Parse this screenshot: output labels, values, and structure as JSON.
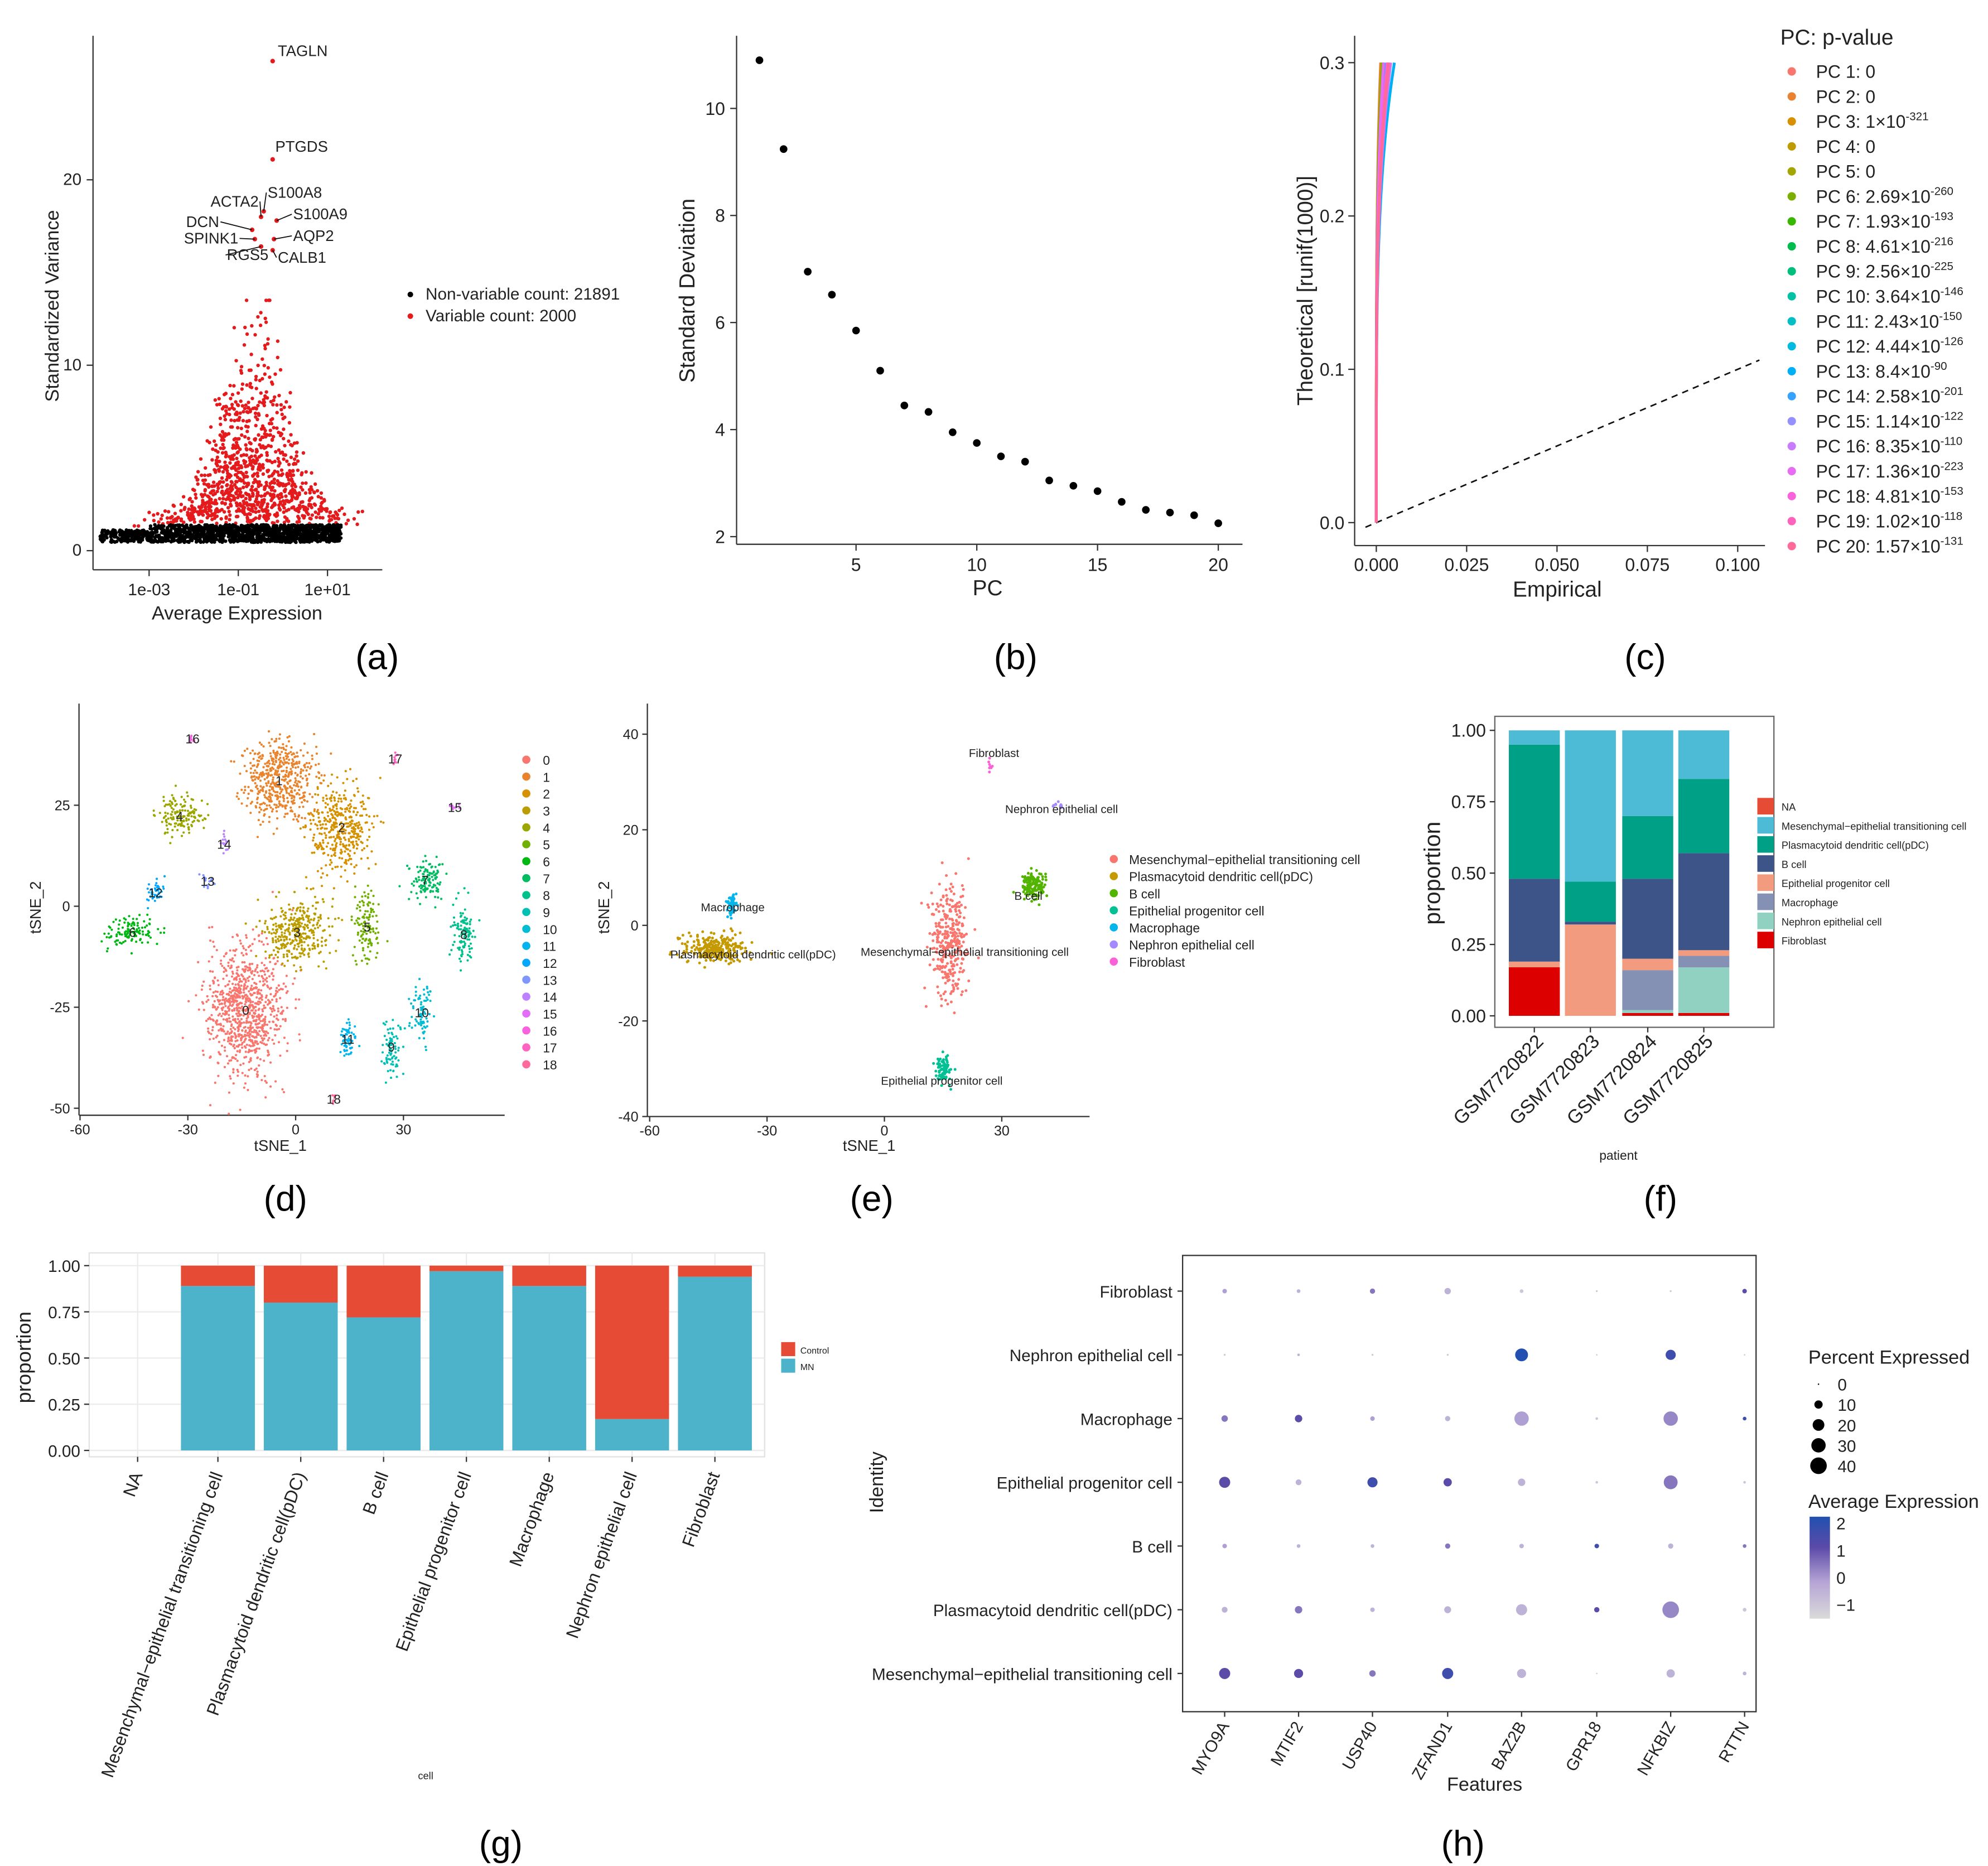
{
  "captions": [
    "(a)",
    "(b)",
    "(c)",
    "(d)",
    "(e)",
    "(f)",
    "(g)",
    "(h)"
  ],
  "chart_data": [
    {
      "panel": "a",
      "type": "scatter",
      "xlabel": "Average Expression",
      "ylabel": "Standardized Variance",
      "xscale": "log10",
      "xticks": [
        {
          "value": -3,
          "label": "1e-03"
        },
        {
          "value": -1,
          "label": "1e-01"
        },
        {
          "value": 1,
          "label": "1e+01"
        }
      ],
      "yticks": [
        {
          "value": 0,
          "label": "0"
        },
        {
          "value": 10,
          "label": "10"
        },
        {
          "value": 20,
          "label": "20"
        }
      ],
      "legend": [
        {
          "label": "Non-variable count: 21891",
          "color": "#000000"
        },
        {
          "label": "Variable count: 2000",
          "color": "#E41A1C"
        }
      ],
      "render_sample": {
        "nonvariable": 1500,
        "variable": 1000
      },
      "labeled_genes": [
        {
          "name": "TAGLN",
          "log10_x": -0.23,
          "y": 26.4
        },
        {
          "name": "PTGDS",
          "log10_x": -0.23,
          "y": 21.1
        },
        {
          "name": "ACTA2",
          "log10_x": -0.49,
          "y": 18.0
        },
        {
          "name": "S100A8",
          "log10_x": -0.43,
          "y": 18.3
        },
        {
          "name": "S100A9",
          "log10_x": -0.14,
          "y": 17.8
        },
        {
          "name": "DCN",
          "log10_x": -0.69,
          "y": 17.3
        },
        {
          "name": "SPINK1",
          "log10_x": -0.63,
          "y": 16.8
        },
        {
          "name": "AQP2",
          "log10_x": -0.2,
          "y": 16.8
        },
        {
          "name": "RGS5",
          "log10_x": -0.49,
          "y": 16.4
        },
        {
          "name": "CALB1",
          "log10_x": -0.23,
          "y": 16.2
        }
      ]
    },
    {
      "panel": "b",
      "type": "scatter",
      "xlabel": "PC",
      "ylabel": "Standard Deviation",
      "xticks": [
        5,
        10,
        15,
        20
      ],
      "yticks": [
        2,
        4,
        6,
        8,
        10
      ],
      "x": [
        1,
        2,
        3,
        4,
        5,
        6,
        7,
        8,
        9,
        10,
        11,
        12,
        13,
        14,
        15,
        16,
        17,
        18,
        19,
        20
      ],
      "y": [
        10.9,
        9.24,
        6.95,
        6.52,
        5.85,
        5.1,
        4.45,
        4.33,
        3.95,
        3.75,
        3.5,
        3.4,
        3.05,
        2.95,
        2.85,
        2.65,
        2.5,
        2.45,
        2.4,
        2.25
      ]
    },
    {
      "panel": "c",
      "type": "line",
      "xlabel": "Empirical",
      "ylabel": "Theoretical [runif(1000)]",
      "xticks": [
        {
          "value": 0,
          "label": "0.000"
        },
        {
          "value": 0.025,
          "label": "0.025"
        },
        {
          "value": 0.05,
          "label": "0.050"
        },
        {
          "value": 0.075,
          "label": "0.075"
        },
        {
          "value": 0.1,
          "label": "0.100"
        }
      ],
      "yticks": [
        {
          "value": 0,
          "label": "0.0"
        },
        {
          "value": 0.1,
          "label": "0.1"
        },
        {
          "value": 0.2,
          "label": "0.2"
        },
        {
          "value": 0.3,
          "label": "0.3"
        }
      ],
      "legend_title": "PC: p-value",
      "series": [
        {
          "label": "PC 1: 0",
          "exp": "",
          "max_empirical": 0.0012
        },
        {
          "label": "PC 2: 0",
          "exp": "",
          "max_empirical": 0.0013
        },
        {
          "label": "PC 3: 1×10",
          "exp": "-321",
          "max_empirical": 0.0014
        },
        {
          "label": "PC 4: 0",
          "exp": "",
          "max_empirical": 0.0015
        },
        {
          "label": "PC 5: 0",
          "exp": "",
          "max_empirical": 0.0016
        },
        {
          "label": "PC 6: 2.69×10",
          "exp": "-260",
          "max_empirical": 0.0018
        },
        {
          "label": "PC 7: 1.93×10",
          "exp": "-193",
          "max_empirical": 0.0022
        },
        {
          "label": "PC 8: 4.61×10",
          "exp": "-216",
          "max_empirical": 0.002
        },
        {
          "label": "PC 9: 2.56×10",
          "exp": "-225",
          "max_empirical": 0.002
        },
        {
          "label": "PC 10: 3.64×10",
          "exp": "-146",
          "max_empirical": 0.0032
        },
        {
          "label": "PC 11: 2.43×10",
          "exp": "-150",
          "max_empirical": 0.003
        },
        {
          "label": "PC 12: 4.44×10",
          "exp": "-126",
          "max_empirical": 0.0036
        },
        {
          "label": "PC 13: 8.4×10",
          "exp": "-90",
          "max_empirical": 0.005
        },
        {
          "label": "PC 14: 2.58×10",
          "exp": "-201",
          "max_empirical": 0.0022
        },
        {
          "label": "PC 15: 1.14×10",
          "exp": "-122",
          "max_empirical": 0.0036
        },
        {
          "label": "PC 16: 8.35×10",
          "exp": "-110",
          "max_empirical": 0.004
        },
        {
          "label": "PC 17: 1.36×10",
          "exp": "-223",
          "max_empirical": 0.002
        },
        {
          "label": "PC 18: 4.81×10",
          "exp": "-153",
          "max_empirical": 0.003
        },
        {
          "label": "PC 19: 1.02×10",
          "exp": "-118",
          "max_empirical": 0.0036
        },
        {
          "label": "PC 20: 1.57×10",
          "exp": "-131",
          "max_empirical": 0.0034
        }
      ]
    },
    {
      "panel": "d",
      "type": "scatter",
      "xlabel": "tSNE_1",
      "ylabel": "tSNE_2",
      "xticks": [
        -60,
        -30,
        0,
        30
      ],
      "yticks": [
        -50,
        -25,
        0,
        25
      ],
      "clusters": [
        {
          "label": "0",
          "x": -13.9,
          "y": -25.6,
          "sx": 9,
          "sy": 13,
          "n": 900
        },
        {
          "label": "1",
          "x": -4.6,
          "y": 31.2,
          "sx": 8,
          "sy": 8,
          "n": 500
        },
        {
          "label": "2",
          "x": 12.8,
          "y": 19.6,
          "sx": 7,
          "sy": 9,
          "n": 400
        },
        {
          "label": "3",
          "x": 0.4,
          "y": -6.3,
          "sx": 7,
          "sy": 7,
          "n": 350
        },
        {
          "label": "4",
          "x": -32.3,
          "y": 22.4,
          "sx": 5,
          "sy": 4,
          "n": 150
        },
        {
          "label": "5",
          "x": 19.9,
          "y": -5.0,
          "sx": 3,
          "sy": 8,
          "n": 120
        },
        {
          "label": "6",
          "x": -45.4,
          "y": -6.3,
          "sx": 6,
          "sy": 3,
          "n": 120
        },
        {
          "label": "7",
          "x": 36.0,
          "y": 6.6,
          "sx": 4,
          "sy": 4,
          "n": 120
        },
        {
          "label": "8",
          "x": 46.8,
          "y": -6.9,
          "sx": 2.5,
          "sy": 6,
          "n": 110
        },
        {
          "label": "9",
          "x": 26.6,
          "y": -34.7,
          "sx": 2.5,
          "sy": 6,
          "n": 80
        },
        {
          "label": "10",
          "x": 35.1,
          "y": -26.2,
          "sx": 2.5,
          "sy": 6,
          "n": 80
        },
        {
          "label": "11",
          "x": 14.5,
          "y": -32.8,
          "sx": 1.8,
          "sy": 3.5,
          "n": 60
        },
        {
          "label": "12",
          "x": -39.0,
          "y": 3.5,
          "sx": 1.8,
          "sy": 2.5,
          "n": 40
        },
        {
          "label": "13",
          "x": -24.5,
          "y": 6.3,
          "sx": 1.5,
          "sy": 1.5,
          "n": 15
        },
        {
          "label": "14",
          "x": -19.9,
          "y": 15.5,
          "sx": 1,
          "sy": 2.5,
          "n": 15
        },
        {
          "label": "15",
          "x": 44.3,
          "y": 24.6,
          "sx": 1.5,
          "sy": 0.6,
          "n": 10
        },
        {
          "label": "16",
          "x": -28.7,
          "y": 41.6,
          "sx": 0.8,
          "sy": 0.8,
          "n": 10
        },
        {
          "label": "17",
          "x": 27.7,
          "y": 36.6,
          "sx": 0.8,
          "sy": 1.2,
          "n": 10
        },
        {
          "label": "18",
          "x": 10.6,
          "y": -47.6,
          "sx": 0.5,
          "sy": 1.2,
          "n": 8
        }
      ]
    },
    {
      "panel": "e",
      "type": "scatter",
      "xlabel": "tSNE_1",
      "ylabel": "tSNE_2",
      "xticks": [
        -60,
        -30,
        0,
        30
      ],
      "yticks": [
        -40,
        -20,
        0,
        20,
        40
      ],
      "clusters": [
        {
          "label": "Mesenchymal−epithelial transitioning cell",
          "color": "#F8766D",
          "x": 16.6,
          "y": -3.7,
          "sx": 4,
          "sy": 10,
          "n": 320
        },
        {
          "label": "Plasmacytoid dendritic cell(pDC)",
          "color": "#C49A00",
          "x": -43.6,
          "y": -5.0,
          "sx": 7,
          "sy": 2.5,
          "n": 260
        },
        {
          "label": "B cell",
          "color": "#53B400",
          "x": 37.8,
          "y": 8.3,
          "sx": 2.5,
          "sy": 2.5,
          "n": 150
        },
        {
          "label": "Epithelial progenitor cell",
          "color": "#00C094",
          "x": 15.0,
          "y": -30.4,
          "sx": 1.6,
          "sy": 2.5,
          "n": 80
        },
        {
          "label": "Macrophage",
          "color": "#00B6EB",
          "x": -39.0,
          "y": 4.3,
          "sx": 1.3,
          "sy": 1.6,
          "n": 50
        },
        {
          "label": "Nephron epithelial cell",
          "color": "#A58AFF",
          "x": 44.3,
          "y": 25.0,
          "sx": 1.5,
          "sy": 0.5,
          "n": 10
        },
        {
          "label": "Fibroblast",
          "color": "#FB61D7",
          "x": 27.0,
          "y": 33.6,
          "sx": 0.6,
          "sy": 1,
          "n": 10
        }
      ]
    },
    {
      "panel": "f",
      "type": "bar",
      "stacked": true,
      "xlabel": "patient",
      "ylabel": "proportion",
      "yticks": [
        {
          "value": 0,
          "label": "0.00"
        },
        {
          "value": 0.25,
          "label": "0.25"
        },
        {
          "value": 0.5,
          "label": "0.50"
        },
        {
          "value": 0.75,
          "label": "0.75"
        },
        {
          "value": 1,
          "label": "1.00"
        }
      ],
      "categories": [
        "GSM7720822",
        "GSM7720823",
        "GSM7720824",
        "GSM7720825"
      ],
      "series": [
        {
          "name": "NA",
          "color": "#E64B35",
          "values": [
            0,
            0,
            0,
            0
          ]
        },
        {
          "name": "Mesenchymal−epithelial transitioning cell",
          "color": "#4DBBD5",
          "values": [
            0.05,
            0.53,
            0.3,
            0.17
          ]
        },
        {
          "name": "Plasmacytoid dendritic cell(pDC)",
          "color": "#00A087",
          "values": [
            0.47,
            0.14,
            0.22,
            0.26
          ]
        },
        {
          "name": "B cell",
          "color": "#3C5488",
          "values": [
            0.29,
            0.01,
            0.28,
            0.34
          ]
        },
        {
          "name": "Epithelial progenitor cell",
          "color": "#F39B7F",
          "values": [
            0.02,
            0.32,
            0.04,
            0.02
          ]
        },
        {
          "name": "Macrophage",
          "color": "#8491B4",
          "values": [
            0,
            0,
            0.14,
            0.04
          ]
        },
        {
          "name": "Nephron epithelial cell",
          "color": "#91D1C2",
          "values": [
            0,
            0,
            0.01,
            0.16
          ]
        },
        {
          "name": "Fibroblast",
          "color": "#DC0000",
          "values": [
            0.17,
            0,
            0.01,
            0.01
          ]
        }
      ]
    },
    {
      "panel": "g",
      "type": "bar",
      "stacked": true,
      "xlabel": "cell",
      "ylabel": "proportion",
      "yticks": [
        {
          "value": 0,
          "label": "0.00"
        },
        {
          "value": 0.25,
          "label": "0.25"
        },
        {
          "value": 0.5,
          "label": "0.50"
        },
        {
          "value": 0.75,
          "label": "0.75"
        },
        {
          "value": 1,
          "label": "1.00"
        }
      ],
      "categories": [
        "NA",
        "Mesenchymal−epithelial transitioning cell",
        "Plasmacytoid dendritic cell(pDC)",
        "B cell",
        "Epithelial progenitor cell",
        "Macrophage",
        "Nephron epithelial cell",
        "Fibroblast"
      ],
      "series": [
        {
          "name": "Control",
          "color": "#E64B35",
          "values": [
            0,
            0.11,
            0.2,
            0.28,
            0.03,
            0.11,
            0.83,
            0.06
          ]
        },
        {
          "name": "MN",
          "color": "#4DB3CB",
          "values": [
            0,
            0.89,
            0.8,
            0.72,
            0.97,
            0.89,
            0.17,
            0.94
          ]
        }
      ]
    },
    {
      "panel": "h",
      "type": "scatter",
      "subtype": "dotplot",
      "xlabel": "Features",
      "ylabel": "Identity",
      "features": [
        "MYO9A",
        "MTIF2",
        "USP40",
        "ZFAND1",
        "BAZ2B",
        "GPR18",
        "NFKBIZ",
        "RTTN"
      ],
      "identities": [
        "Fibroblast",
        "Nephron epithelial cell",
        "Macrophage",
        "Epithelial progenitor cell",
        "B cell",
        "Plasmacytoid dendritic cell(pDC)",
        "Mesenchymal−epithelial transitioning cell"
      ],
      "percent_expressed": [
        [
          3,
          2,
          4,
          6,
          2,
          0.5,
          0.5,
          3
        ],
        [
          0.5,
          1,
          0.5,
          0.5,
          24,
          0,
          15,
          0
        ],
        [
          6,
          8,
          3,
          4,
          30,
          1,
          30,
          2
        ],
        [
          18,
          5,
          15,
          10,
          8,
          1,
          28,
          1
        ],
        [
          3,
          2,
          2,
          4,
          3,
          3,
          4,
          2
        ],
        [
          5,
          8,
          3,
          7,
          18,
          4,
          40,
          2
        ],
        [
          18,
          12,
          6,
          18,
          12,
          0,
          10,
          2
        ]
      ],
      "average_expression": [
        [
          0,
          -0.5,
          0.5,
          -0.5,
          -1,
          -1,
          -1,
          1
        ],
        [
          -1,
          -0.5,
          -1,
          -1,
          2,
          -1,
          1.5,
          -1
        ],
        [
          0.5,
          1,
          0,
          -0.5,
          0,
          -1,
          0.3,
          1.5
        ],
        [
          1,
          -0.5,
          1.5,
          1,
          -0.5,
          -1,
          0.5,
          -1
        ],
        [
          0,
          -0.5,
          -0.5,
          0.5,
          -0.5,
          1.5,
          -0.5,
          0.5
        ],
        [
          -0.5,
          0.5,
          -0.5,
          -0.5,
          -0.5,
          1,
          0.3,
          -1
        ],
        [
          1,
          1,
          0.5,
          1.5,
          -0.5,
          -1,
          -0.5,
          -0.5
        ]
      ],
      "size_legend": {
        "title": "Percent Expressed",
        "values": [
          0,
          10,
          20,
          30,
          40
        ],
        "labels": [
          "0",
          "10",
          "20",
          "30",
          "40"
        ]
      },
      "color_legend": {
        "title": "Average Expression",
        "values": [
          2,
          1,
          0,
          -1
        ],
        "labels": [
          "2",
          "1",
          "0",
          "−1"
        ],
        "low": "#D9D9D9",
        "high": "#2150B0"
      }
    }
  ]
}
